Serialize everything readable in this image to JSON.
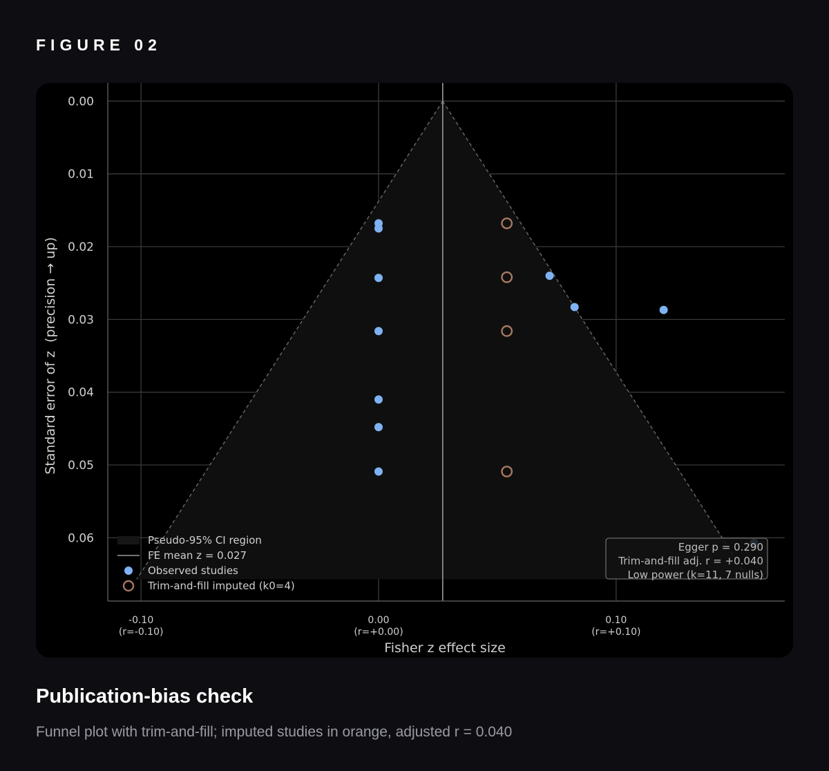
{
  "figure_label": "FIGURE 02",
  "caption": {
    "title": "Publication-bias check",
    "subtitle": "Funnel plot with trim-and-fill; imputed studies in orange, adjusted r = 0.040"
  },
  "colors": {
    "observed": "#7eb2f2",
    "imputed": "#a87860",
    "funnel_fill": "#0f0f0f",
    "grid": "#3a3a3a",
    "text": "#d0d0d0"
  },
  "chart_data": {
    "type": "scatter",
    "xlabel": "Fisher z effect size",
    "ylabel": "Standard error of z  (precision → up)",
    "xlim": [
      -0.114,
      0.171
    ],
    "ylim": [
      0.0687,
      -0.0025
    ],
    "y_inverted": true,
    "grid": true,
    "x_ticks": [
      {
        "value": -0.1,
        "label": "-0.10",
        "sublabel": "(r=-0.10)"
      },
      {
        "value": 0.0,
        "label": "0.00",
        "sublabel": "(r=+0.00)"
      },
      {
        "value": 0.1,
        "label": "0.10",
        "sublabel": "(r=+0.10)"
      }
    ],
    "y_ticks": [
      {
        "value": 0.0,
        "label": "0.00"
      },
      {
        "value": 0.01,
        "label": "0.01"
      },
      {
        "value": 0.02,
        "label": "0.02"
      },
      {
        "value": 0.03,
        "label": "0.03"
      },
      {
        "value": 0.04,
        "label": "0.04"
      },
      {
        "value": 0.05,
        "label": "0.05"
      },
      {
        "value": 0.06,
        "label": "0.06"
      }
    ],
    "fe_mean_z": 0.027,
    "funnel": {
      "apex": [
        0.027,
        0.0
      ],
      "base_se": 0.0657
    },
    "series": [
      {
        "name": "Observed studies",
        "marker": "filled",
        "points": [
          {
            "x": 0.0,
            "y": 0.0168
          },
          {
            "x": 0.0,
            "y": 0.0175
          },
          {
            "x": 0.0,
            "y": 0.0243
          },
          {
            "x": 0.0,
            "y": 0.0316
          },
          {
            "x": 0.0,
            "y": 0.041
          },
          {
            "x": 0.0,
            "y": 0.0448
          },
          {
            "x": 0.0,
            "y": 0.0509
          },
          {
            "x": 0.072,
            "y": 0.024
          },
          {
            "x": 0.0825,
            "y": 0.0283
          },
          {
            "x": 0.12,
            "y": 0.0287
          },
          {
            "x": 0.158,
            "y": 0.0607
          }
        ]
      },
      {
        "name": "Trim-and-fill imputed (k0=4)",
        "marker": "hollow",
        "points": [
          {
            "x": 0.054,
            "y": 0.0168
          },
          {
            "x": 0.054,
            "y": 0.0242
          },
          {
            "x": 0.054,
            "y": 0.0316
          },
          {
            "x": 0.054,
            "y": 0.0509
          }
        ]
      }
    ],
    "legend": {
      "position": "lower-left",
      "entries": [
        {
          "label": "Pseudo-95% CI region",
          "kind": "patch"
        },
        {
          "label": "FE mean z = 0.027",
          "kind": "line"
        },
        {
          "label": "Observed studies",
          "kind": "filled"
        },
        {
          "label": "Trim-and-fill imputed (k0=4)",
          "kind": "hollow"
        }
      ]
    },
    "annotation": {
      "position": "lower-right",
      "lines": [
        "Egger p = 0.290",
        "Trim-and-fill adj. r = +0.040",
        "Low power (k=11, 7 nulls)"
      ]
    }
  }
}
